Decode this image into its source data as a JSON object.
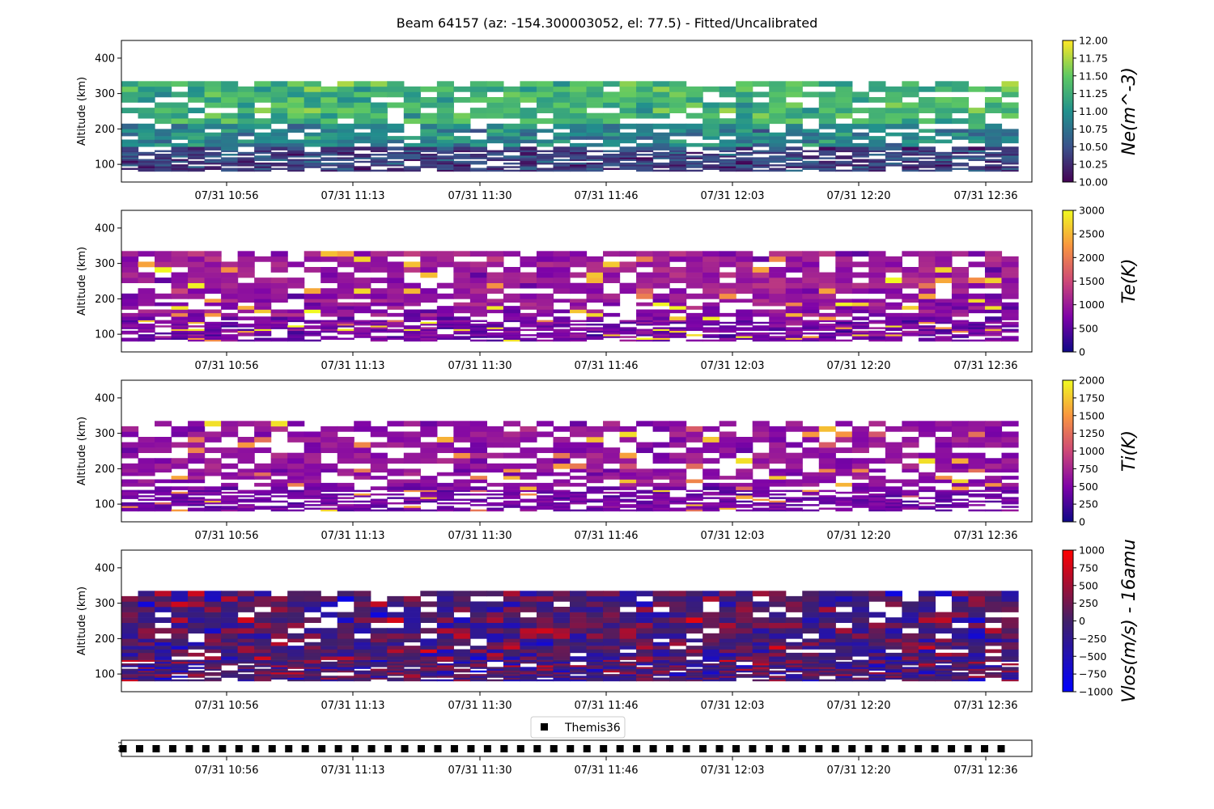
{
  "title": "Beam 64157 (az: -154.300003052, el: 77.5) - Fitted/Uncalibrated",
  "x_tick_labels": [
    "07/31 10:56",
    "07/31 11:13",
    "07/31 11:30",
    "07/31 11:46",
    "07/31 12:03",
    "07/31 12:20",
    "07/31 12:36"
  ],
  "legend": {
    "label": "Themis36",
    "marker": "black-square"
  },
  "chart_data": [
    {
      "type": "heatmap",
      "parameter": "Ne",
      "colorbar_label": "Ne(m^-3)",
      "colormap": "viridis-like",
      "colors": [
        "#440154",
        "#3b528b",
        "#21908d",
        "#5dc863",
        "#fde725"
      ],
      "clim": [
        10.0,
        12.0
      ],
      "cb_ticks": [
        "10.00",
        "10.25",
        "10.50",
        "10.75",
        "11.00",
        "11.25",
        "11.50",
        "11.75",
        "12.00"
      ],
      "ylabel": "Altitude (km)",
      "y_ticks": [
        "100",
        "200",
        "300",
        "400"
      ],
      "ylim": [
        50,
        450
      ],
      "x_range": [
        "07/31 10:42",
        "07/31 12:42"
      ],
      "altitude_range_km": [
        80,
        335
      ],
      "time_bins": 54,
      "typical_values": {
        "above_220km": 11.3,
        "150_220km": 10.9,
        "below_150km": 10.4
      },
      "missing_fraction": 0.22
    },
    {
      "type": "heatmap",
      "parameter": "Te",
      "colorbar_label": "Te(K)",
      "colormap": "plasma-like",
      "colors": [
        "#0d0887",
        "#7e03a8",
        "#cc4778",
        "#f89540",
        "#f0f921"
      ],
      "clim": [
        0,
        3000
      ],
      "cb_ticks": [
        "0",
        "500",
        "1000",
        "1500",
        "2000",
        "2500",
        "3000"
      ],
      "ylabel": "Altitude (km)",
      "y_ticks": [
        "100",
        "200",
        "300",
        "400"
      ],
      "ylim": [
        50,
        450
      ],
      "x_range": [
        "07/31 10:42",
        "07/31 12:42"
      ],
      "altitude_range_km": [
        80,
        335
      ],
      "time_bins": 54,
      "typical_values": {
        "above_220km": 1000,
        "150_220km": 900,
        "below_150km": 700
      },
      "occasional_high_values": 3000,
      "missing_fraction": 0.22
    },
    {
      "type": "heatmap",
      "parameter": "Ti",
      "colorbar_label": "Ti(K)",
      "colormap": "plasma-like",
      "colors": [
        "#0d0887",
        "#7e03a8",
        "#cc4778",
        "#f89540",
        "#f0f921"
      ],
      "clim": [
        0,
        2000
      ],
      "cb_ticks": [
        "0",
        "250",
        "500",
        "750",
        "1000",
        "1250",
        "1500",
        "1750",
        "2000"
      ],
      "ylabel": "Altitude (km)",
      "y_ticks": [
        "100",
        "200",
        "300",
        "400"
      ],
      "ylim": [
        50,
        450
      ],
      "x_range": [
        "07/31 10:42",
        "07/31 12:42"
      ],
      "altitude_range_km": [
        80,
        335
      ],
      "time_bins": 54,
      "typical_values": {
        "above_150km": 600,
        "below_150km": 450
      },
      "occasional_high_values": 1500,
      "missing_fraction": 0.3
    },
    {
      "type": "heatmap",
      "parameter": "Vlos",
      "colorbar_label": "Vlos(m/s) - 16amu",
      "colormap": "bwr-dark",
      "colors": [
        "#0000ff",
        "#40206a",
        "#ff0000"
      ],
      "clim": [
        -1000,
        1000
      ],
      "cb_ticks": [
        "−1000",
        "−750",
        "−500",
        "−250",
        "0",
        "250",
        "500",
        "750",
        "1000"
      ],
      "ylabel": "Altitude (km)",
      "y_ticks": [
        "100",
        "200",
        "300",
        "400"
      ],
      "ylim": [
        50,
        450
      ],
      "x_range": [
        "07/31 10:42",
        "07/31 12:42"
      ],
      "altitude_range_km": [
        80,
        335
      ],
      "time_bins": 54,
      "typical_values": {
        "all_altitudes": 0
      },
      "spread": 450,
      "missing_fraction": 0.12
    },
    {
      "type": "scatter",
      "series": [
        {
          "name": "Themis36",
          "marker": "square",
          "color": "#000000",
          "points": 54
        }
      ],
      "x_range": [
        "07/31 10:42",
        "07/31 12:42"
      ]
    }
  ]
}
